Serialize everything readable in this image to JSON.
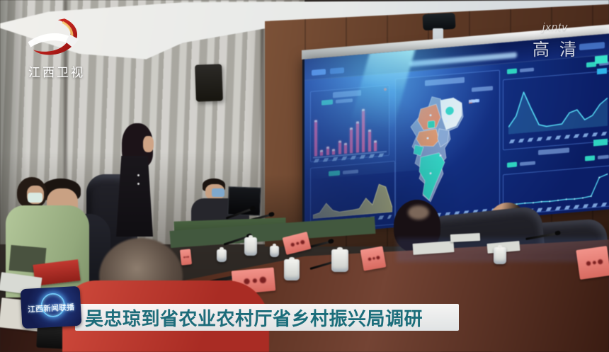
{
  "broadcast": {
    "channel_logo_text": "江西卫视",
    "watermark_line1": "jxntv",
    "watermark_line2": "高清",
    "program_badge_text": "江西新闻联播",
    "caption_text": "吴忠琼到省农业农村厅省乡村振兴局调研",
    "caption_text_color": "#16707f"
  },
  "screen": {
    "bg_color": "#12307f",
    "glow_color": "#3fd9ef",
    "panel_border_color": "#5f91eb",
    "charts": {
      "bar_chart": {
        "type": "bar",
        "bar_color": "#ef5fa2",
        "values": [
          60,
          9,
          14,
          10,
          22,
          18,
          42,
          52,
          72,
          36,
          18
        ]
      },
      "area_chart": {
        "type": "area",
        "fill_color": "#c9c97e",
        "line_color": "#e9e9a8",
        "values": [
          8,
          12,
          32,
          15,
          10,
          11,
          12,
          14,
          36,
          20,
          65,
          58,
          10
        ]
      },
      "line_chart_top": {
        "type": "line",
        "line_color": "#55d8f2",
        "values": [
          12,
          30,
          70,
          40,
          12,
          8,
          9,
          10,
          28,
          32,
          14,
          20,
          38,
          48
        ]
      },
      "line_chart_bottom": {
        "type": "line",
        "line_color": "#55d8f2",
        "values": [
          14,
          13,
          14,
          13,
          14,
          13,
          14,
          15,
          14,
          15,
          18,
          70,
          78
        ]
      },
      "ranking_list": {
        "type": "list",
        "bullet_colors": [
          "teal",
          "teal",
          "teal",
          "blue",
          "blue",
          "teal",
          "teal",
          "teal",
          "white",
          "orange",
          "red"
        ],
        "bullet_palette": {
          "teal": "#2fd3c0",
          "blue": "#4a90e0",
          "white": "#e8ecef",
          "orange": "#e8833e",
          "red": "#d84838"
        }
      },
      "map": {
        "type": "map",
        "region_colors": {
          "teal": "#2fd3c0",
          "orange": "#e8825a",
          "blue_gray": "#7d95c2",
          "white": "#edf1f2"
        }
      }
    }
  },
  "scene_palette": {
    "curtain": "#bcbab3",
    "wood_wall": "#5e3a26",
    "table": "#5c3222",
    "chair": "#15151a",
    "nameplate": "#ef8178",
    "presenter_outfit": "#16161a",
    "green_jacket": "#a9bd8f",
    "red_clothing": "#bb382e"
  }
}
